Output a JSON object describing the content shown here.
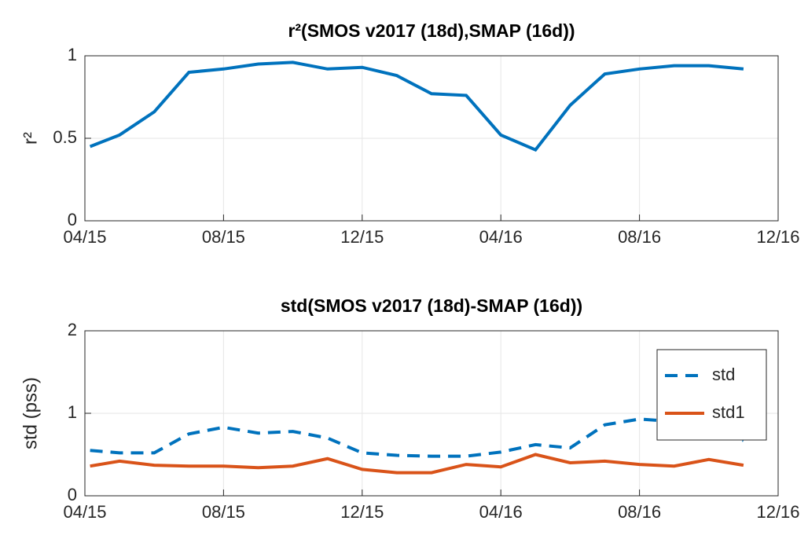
{
  "chart_data": [
    {
      "type": "line",
      "title": "r²(SMOS v2017 (18d),SMAP (16d))",
      "ylabel": "r²",
      "x": [
        0.15,
        1,
        2,
        3,
        4,
        5,
        6,
        7,
        8,
        9,
        10,
        11,
        12,
        13,
        14,
        15,
        16,
        17,
        18,
        19
      ],
      "series": [
        {
          "name": "r2",
          "color": "#0072bd",
          "dash": false,
          "values": [
            0.45,
            0.52,
            0.66,
            0.9,
            0.92,
            0.95,
            0.96,
            0.92,
            0.93,
            0.88,
            0.77,
            0.76,
            0.52,
            0.43,
            0.7,
            0.89,
            0.92,
            0.94,
            0.94,
            0.92
          ]
        }
      ],
      "xlim": [
        0,
        20
      ],
      "xticks": [
        {
          "value": 0,
          "label": "04/15"
        },
        {
          "value": 4,
          "label": "08/15"
        },
        {
          "value": 8,
          "label": "12/15"
        },
        {
          "value": 12,
          "label": "04/16"
        },
        {
          "value": 16,
          "label": "08/16"
        },
        {
          "value": 20,
          "label": "12/16"
        }
      ],
      "ylim": [
        0,
        1
      ],
      "yticks": [
        0,
        0.5,
        1
      ],
      "grid": true
    },
    {
      "type": "line",
      "title": "std(SMOS v2017 (18d)-SMAP (16d))",
      "ylabel": "std (pss)",
      "x": [
        0.15,
        1,
        2,
        3,
        4,
        5,
        6,
        7,
        8,
        9,
        10,
        11,
        12,
        13,
        14,
        15,
        16,
        17,
        18,
        19
      ],
      "series": [
        {
          "name": "std",
          "color": "#0072bd",
          "dash": true,
          "values": [
            0.55,
            0.52,
            0.52,
            0.75,
            0.83,
            0.76,
            0.78,
            0.7,
            0.52,
            0.49,
            0.48,
            0.48,
            0.53,
            0.62,
            0.58,
            0.86,
            0.93,
            0.9,
            0.85,
            0.67
          ]
        },
        {
          "name": "std1",
          "color": "#d95319",
          "dash": false,
          "values": [
            0.36,
            0.42,
            0.37,
            0.36,
            0.36,
            0.34,
            0.36,
            0.45,
            0.32,
            0.28,
            0.28,
            0.38,
            0.35,
            0.5,
            0.4,
            0.42,
            0.38,
            0.36,
            0.44,
            0.37
          ]
        }
      ],
      "xlim": [
        0,
        20
      ],
      "xticks": [
        {
          "value": 0,
          "label": "04/15"
        },
        {
          "value": 4,
          "label": "08/15"
        },
        {
          "value": 8,
          "label": "12/15"
        },
        {
          "value": 12,
          "label": "04/16"
        },
        {
          "value": 16,
          "label": "08/16"
        },
        {
          "value": 20,
          "label": "12/16"
        }
      ],
      "ylim": [
        0,
        2
      ],
      "yticks": [
        0,
        1,
        2
      ],
      "grid": true,
      "legend": "upper-right"
    }
  ]
}
